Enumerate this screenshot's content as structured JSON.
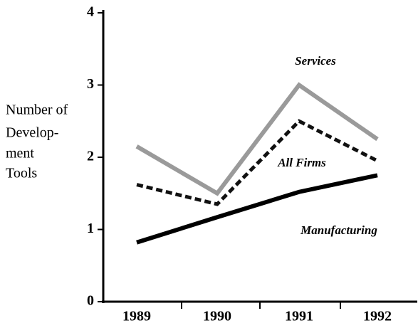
{
  "chart_data": {
    "type": "line",
    "ylabel": [
      "Number of",
      "Develop-",
      "ment",
      "Tools"
    ],
    "categories": [
      "1989",
      "1990",
      "1991",
      "1992"
    ],
    "series": [
      {
        "name": "Services",
        "color": "#9a9a9a",
        "width": 6,
        "dash": "none",
        "values": [
          2.15,
          1.5,
          3.0,
          2.25
        ]
      },
      {
        "name": "All Firms",
        "color": "#111111",
        "width": 5,
        "dash": "9,5",
        "values": [
          1.62,
          1.35,
          2.5,
          1.95
        ]
      },
      {
        "name": "Manufacturing",
        "color": "#000000",
        "width": 6,
        "dash": "none",
        "values": [
          0.82,
          1.17,
          1.52,
          1.75
        ]
      }
    ],
    "ylim": [
      0,
      4
    ],
    "yticks": [
      0,
      1,
      2,
      3,
      4
    ]
  }
}
